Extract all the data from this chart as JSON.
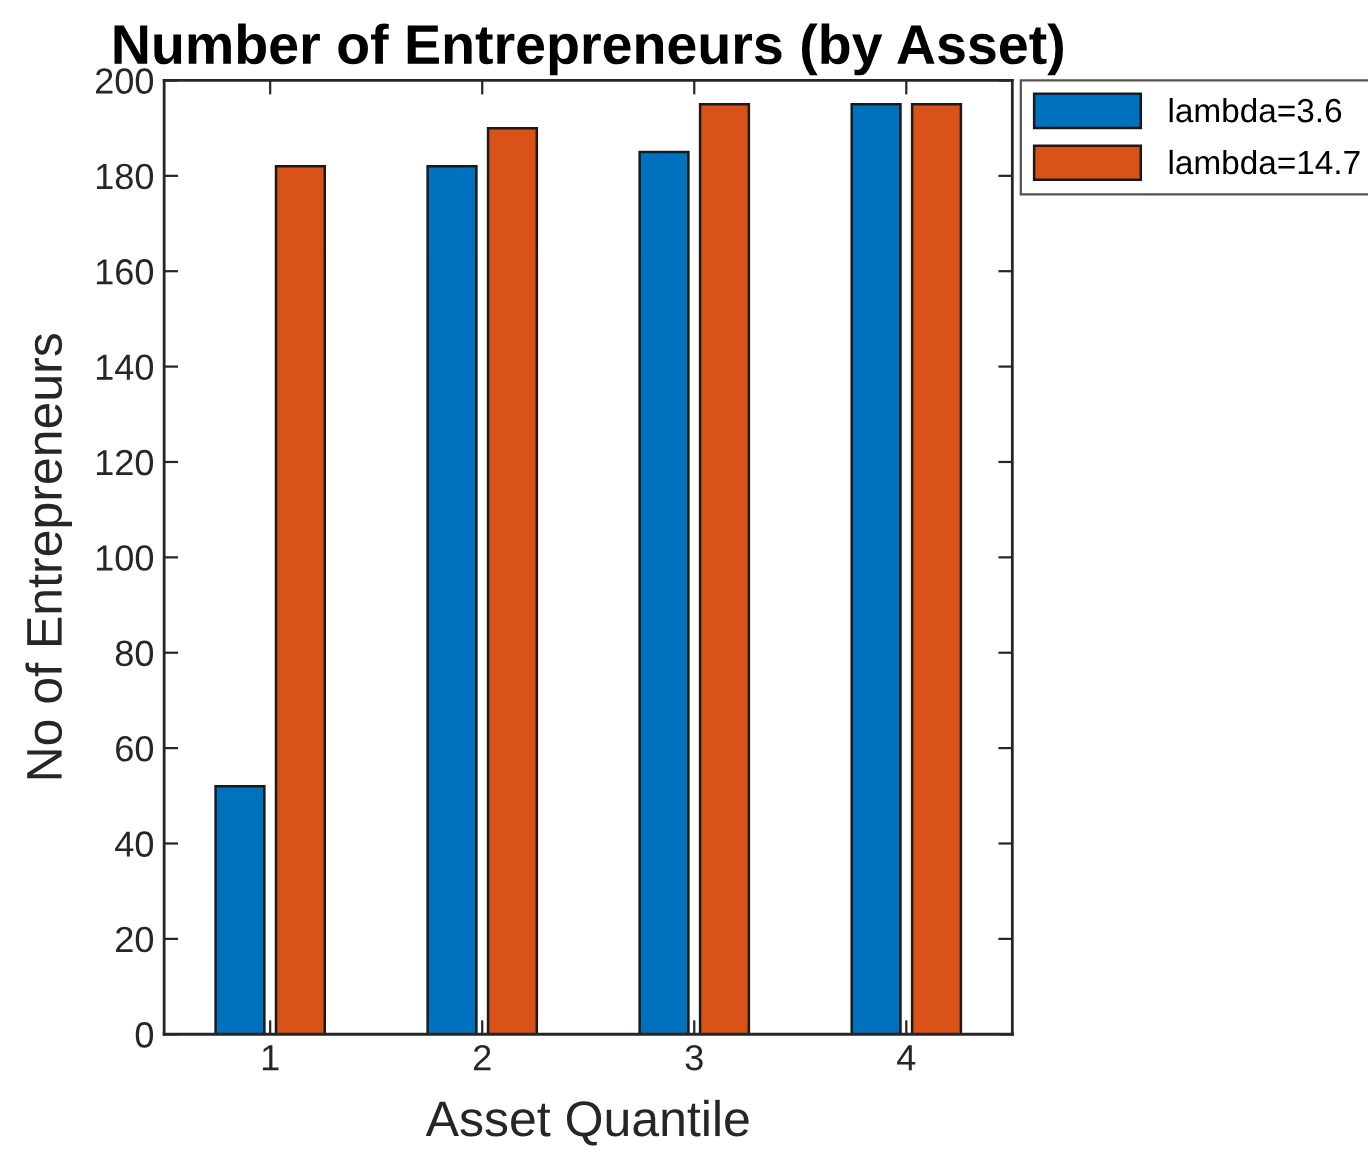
{
  "chart_data": {
    "type": "bar",
    "title": "Number of Entrepreneurs (by Asset)",
    "xlabel": "Asset Quantile",
    "ylabel": "No of Entrepreneurs",
    "categories": [
      "1",
      "2",
      "3",
      "4"
    ],
    "series": [
      {
        "name": "lambda=3.6",
        "color": "#0072bd",
        "values": [
          52,
          182,
          185,
          195
        ]
      },
      {
        "name": "lambda=14.7",
        "color": "#d95319",
        "values": [
          182,
          190,
          195,
          195
        ]
      }
    ],
    "ylim": [
      0,
      200
    ],
    "yticks": [
      0,
      20,
      40,
      60,
      80,
      100,
      120,
      140,
      160,
      180,
      200
    ],
    "grid": false,
    "legend": "top right"
  }
}
